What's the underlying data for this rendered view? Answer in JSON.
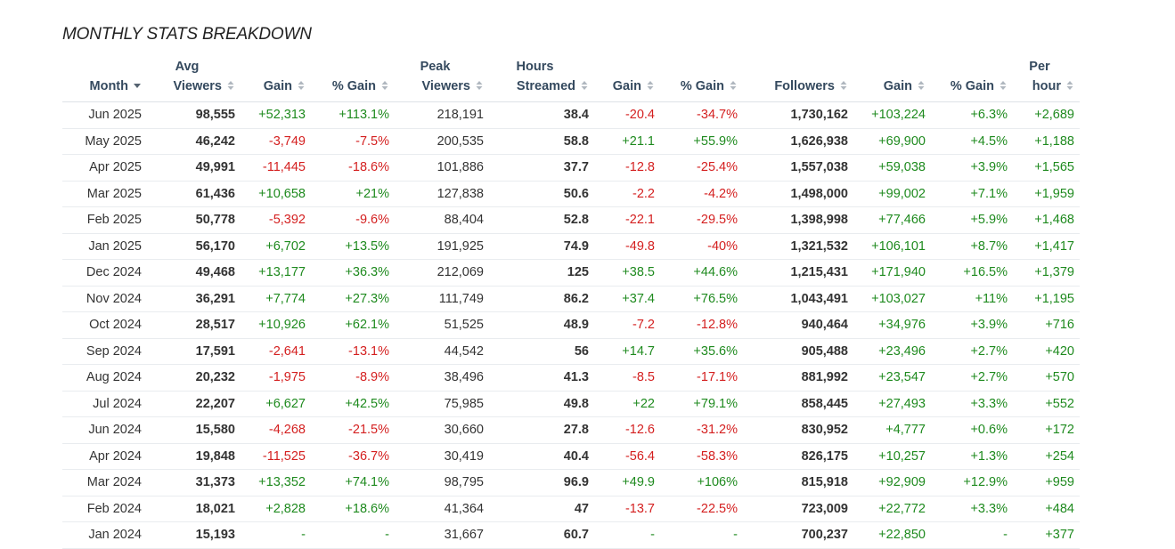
{
  "title": "MONTHLY STATS BREAKDOWN",
  "columns": [
    {
      "l1": "",
      "l2": "Month",
      "sort": "desc"
    },
    {
      "l1": "Avg",
      "l2": "Viewers",
      "sort": "both"
    },
    {
      "l1": "",
      "l2": "Gain",
      "sort": "both"
    },
    {
      "l1": "",
      "l2": "% Gain",
      "sort": "both"
    },
    {
      "l1": "Peak",
      "l2": "Viewers",
      "sort": "both"
    },
    {
      "l1": "Hours",
      "l2": "Streamed",
      "sort": "both"
    },
    {
      "l1": "",
      "l2": "Gain",
      "sort": "both"
    },
    {
      "l1": "",
      "l2": "% Gain",
      "sort": "both"
    },
    {
      "l1": "",
      "l2": "Followers",
      "sort": "both"
    },
    {
      "l1": "",
      "l2": "Gain",
      "sort": "both"
    },
    {
      "l1": "",
      "l2": "% Gain",
      "sort": "both"
    },
    {
      "l1": "Per",
      "l2": "hour",
      "sort": "both"
    }
  ],
  "rows": [
    [
      "Jun 2025",
      "98,555",
      "+52,313",
      "+113.1%",
      "218,191",
      "38.4",
      "-20.4",
      "-34.7%",
      "1,730,162",
      "+103,224",
      "+6.3%",
      "+2,689"
    ],
    [
      "May 2025",
      "46,242",
      "-3,749",
      "-7.5%",
      "200,535",
      "58.8",
      "+21.1",
      "+55.9%",
      "1,626,938",
      "+69,900",
      "+4.5%",
      "+1,188"
    ],
    [
      "Apr 2025",
      "49,991",
      "-11,445",
      "-18.6%",
      "101,886",
      "37.7",
      "-12.8",
      "-25.4%",
      "1,557,038",
      "+59,038",
      "+3.9%",
      "+1,565"
    ],
    [
      "Mar 2025",
      "61,436",
      "+10,658",
      "+21%",
      "127,838",
      "50.6",
      "-2.2",
      "-4.2%",
      "1,498,000",
      "+99,002",
      "+7.1%",
      "+1,959"
    ],
    [
      "Feb 2025",
      "50,778",
      "-5,392",
      "-9.6%",
      "88,404",
      "52.8",
      "-22.1",
      "-29.5%",
      "1,398,998",
      "+77,466",
      "+5.9%",
      "+1,468"
    ],
    [
      "Jan 2025",
      "56,170",
      "+6,702",
      "+13.5%",
      "191,925",
      "74.9",
      "-49.8",
      "-40%",
      "1,321,532",
      "+106,101",
      "+8.7%",
      "+1,417"
    ],
    [
      "Dec 2024",
      "49,468",
      "+13,177",
      "+36.3%",
      "212,069",
      "125",
      "+38.5",
      "+44.6%",
      "1,215,431",
      "+171,940",
      "+16.5%",
      "+1,379"
    ],
    [
      "Nov 2024",
      "36,291",
      "+7,774",
      "+27.3%",
      "111,749",
      "86.2",
      "+37.4",
      "+76.5%",
      "1,043,491",
      "+103,027",
      "+11%",
      "+1,195"
    ],
    [
      "Oct 2024",
      "28,517",
      "+10,926",
      "+62.1%",
      "51,525",
      "48.9",
      "-7.2",
      "-12.8%",
      "940,464",
      "+34,976",
      "+3.9%",
      "+716"
    ],
    [
      "Sep 2024",
      "17,591",
      "-2,641",
      "-13.1%",
      "44,542",
      "56",
      "+14.7",
      "+35.6%",
      "905,488",
      "+23,496",
      "+2.7%",
      "+420"
    ],
    [
      "Aug 2024",
      "20,232",
      "-1,975",
      "-8.9%",
      "38,496",
      "41.3",
      "-8.5",
      "-17.1%",
      "881,992",
      "+23,547",
      "+2.7%",
      "+570"
    ],
    [
      "Jul 2024",
      "22,207",
      "+6,627",
      "+42.5%",
      "75,985",
      "49.8",
      "+22",
      "+79.1%",
      "858,445",
      "+27,493",
      "+3.3%",
      "+552"
    ],
    [
      "Jun 2024",
      "15,580",
      "-4,268",
      "-21.5%",
      "30,660",
      "27.8",
      "-12.6",
      "-31.2%",
      "830,952",
      "+4,777",
      "+0.6%",
      "+172"
    ],
    [
      "Apr 2024",
      "19,848",
      "-11,525",
      "-36.7%",
      "30,419",
      "40.4",
      "-56.4",
      "-58.3%",
      "826,175",
      "+10,257",
      "+1.3%",
      "+254"
    ],
    [
      "Mar 2024",
      "31,373",
      "+13,352",
      "+74.1%",
      "98,795",
      "96.9",
      "+49.9",
      "+106%",
      "815,918",
      "+92,909",
      "+12.9%",
      "+959"
    ],
    [
      "Feb 2024",
      "18,021",
      "+2,828",
      "+18.6%",
      "41,364",
      "47",
      "-13.7",
      "-22.5%",
      "723,009",
      "+22,772",
      "+3.3%",
      "+484"
    ],
    [
      "Jan 2024",
      "15,193",
      "-",
      "-",
      "31,667",
      "60.7",
      "-",
      "-",
      "700,237",
      "+22,850",
      "-",
      "+377"
    ]
  ],
  "colors": {
    "positive": "#1e8a1e",
    "negative": "#d41f1f",
    "header": "#34495e",
    "sort_icon": "#b0b7bf"
  }
}
